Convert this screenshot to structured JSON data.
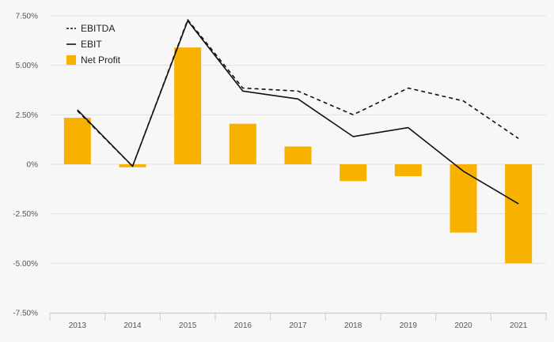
{
  "chart_data": {
    "type": "bar",
    "title": "",
    "xlabel": "",
    "ylabel": "",
    "categories": [
      "2013",
      "2014",
      "2015",
      "2016",
      "2017",
      "2018",
      "2019",
      "2020",
      "2021"
    ],
    "y_tick_labels": [
      "7.50%",
      "5.00%",
      "2.50%",
      "0%",
      "-2.50%",
      "-5.00%",
      "-7.50%"
    ],
    "y_tick_values": [
      7.5,
      5.0,
      2.5,
      0,
      -2.5,
      -5.0,
      -7.5
    ],
    "ylim": [
      -7.5,
      7.5
    ],
    "grid": true,
    "legend_position": "top-left",
    "series": [
      {
        "name": "EBITDA",
        "kind": "line",
        "style": "dashed",
        "color": "#111111",
        "values": [
          2.7,
          -0.1,
          7.3,
          3.85,
          3.7,
          2.5,
          3.85,
          3.2,
          1.3
        ]
      },
      {
        "name": "EBIT",
        "kind": "line",
        "style": "solid",
        "color": "#111111",
        "values": [
          2.75,
          -0.1,
          7.25,
          3.7,
          3.3,
          1.4,
          1.85,
          -0.35,
          -2.0
        ]
      },
      {
        "name": "Net Profit",
        "kind": "bar",
        "color": "#f9b100",
        "values": [
          2.35,
          -0.15,
          5.9,
          2.05,
          0.9,
          -0.85,
          -0.6,
          -3.45,
          -5.0
        ]
      }
    ]
  }
}
